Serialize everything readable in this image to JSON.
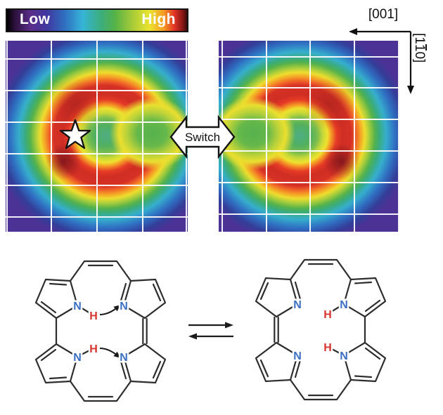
{
  "colorbar": {
    "low_label": "Low",
    "high_label": "High",
    "palette": [
      "#000000",
      "#5a2d8a",
      "#41379f",
      "#2f6fc0",
      "#36b4d8",
      "#3bae7f",
      "#55b247",
      "#a9cc37",
      "#eae42e",
      "#f59c24",
      "#e23325",
      "#3a0c0e"
    ]
  },
  "axes": {
    "horizontal_label": "[001]",
    "vertical_label_pre": "[1",
    "vertical_label_bar": "1",
    "vertical_label_post": "0]"
  },
  "switch_arrow": {
    "label": "Switch"
  },
  "stm": {
    "heat_colors": {
      "center_green": "#52b05e",
      "ring_red": "#d63025",
      "outer_purple": "#553697",
      "grid_line": "#ffffff"
    },
    "grid": {
      "left": {
        "v": [
          1,
          64,
          129,
          194,
          256
        ],
        "h": [
          25,
          70,
          115,
          160,
          205,
          250
        ]
      },
      "right": {
        "v": [
          4,
          67,
          129,
          192,
          255
        ],
        "h": [
          22,
          66,
          111,
          156,
          201,
          246
        ]
      }
    }
  },
  "molecules": {
    "nitrogen_label": "N",
    "hydrogen_label": "H",
    "nitrogen_color": "#3a6fc4",
    "hydrogen_color": "#d8352f"
  }
}
